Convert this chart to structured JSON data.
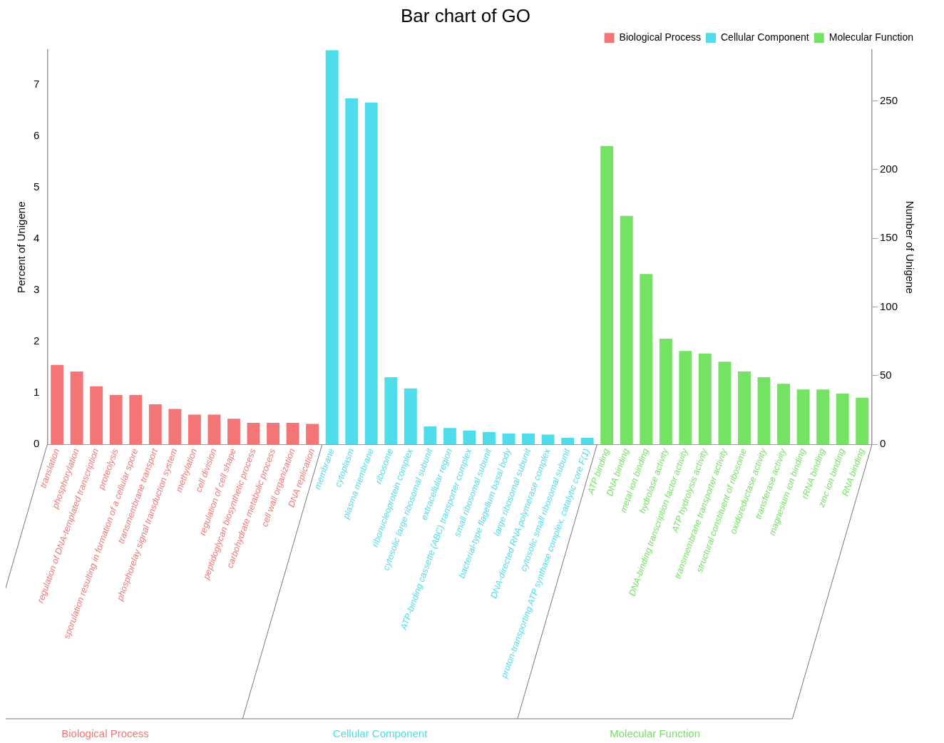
{
  "chart_data": {
    "type": "bar",
    "title": "Bar chart of GO",
    "ylabel": "Percent of Unigene",
    "y2label": "Number of Unigene",
    "categories": [
      "translation",
      "phosphorylation",
      "regulation of DNA-templated transcription",
      "proteolysis",
      "sporulation resulting in formation of a cellular spore",
      "transmembrane transport",
      "phosphorelay signal transduction system",
      "methylation",
      "cell division",
      "regulation of cell shape",
      "peptidoglycan biosynthetic process",
      "carbohydrate metabolic process",
      "cell wall organization",
      "DNA replication",
      "membrane",
      "cytoplasm",
      "plasma membrane",
      "ribosome",
      "ribonucleoprotein complex",
      "cytosolic large ribosomal subunit",
      "extracellular region",
      "ATP-binding cassette (ABC) transporter complex",
      "small ribosomal subunit",
      "bacterial-type flagellum basal body",
      "large ribosomal subunit",
      "DNA-directed RNA polymerase complex",
      "cytosolic small ribosomal subunit",
      "proton-transporting ATP synthase complex, catalytic core F(1)",
      "ATP binding",
      "DNA binding",
      "metal ion binding",
      "hydrolase activity",
      "DNA-binding transcription factor activity",
      "ATP hydrolysis activity",
      "transmembrane transporter activity",
      "structural constituent of ribosome",
      "oxidoreductase activity",
      "transferase activity",
      "magnesium ion binding",
      "rRNA binding",
      "zinc ion binding",
      "RNA binding"
    ],
    "series": [
      {
        "name": "Biological Process",
        "color": "#f47575",
        "values": [
          1.55,
          1.42,
          1.13,
          0.96,
          0.96,
          0.78,
          0.69,
          0.58,
          0.58,
          0.5,
          0.42,
          0.42,
          0.42,
          0.4,
          null,
          null,
          null,
          null,
          null,
          null,
          null,
          null,
          null,
          null,
          null,
          null,
          null,
          null,
          null,
          null,
          null,
          null,
          null,
          null,
          null,
          null,
          null,
          null,
          null,
          null,
          null,
          null
        ]
      },
      {
        "name": "Cellular Component",
        "color": "#4fdceb",
        "values": [
          null,
          null,
          null,
          null,
          null,
          null,
          null,
          null,
          null,
          null,
          null,
          null,
          null,
          null,
          7.68,
          6.74,
          6.66,
          1.31,
          1.09,
          0.35,
          0.32,
          0.27,
          0.24,
          0.21,
          0.21,
          0.19,
          0.13,
          0.13,
          null,
          null,
          null,
          null,
          null,
          null,
          null,
          null,
          null,
          null,
          null,
          null,
          null,
          null
        ]
      },
      {
        "name": "Molecular Function",
        "color": "#74e262",
        "values": [
          null,
          null,
          null,
          null,
          null,
          null,
          null,
          null,
          null,
          null,
          null,
          null,
          null,
          null,
          null,
          null,
          null,
          null,
          null,
          null,
          null,
          null,
          null,
          null,
          null,
          null,
          null,
          null,
          5.81,
          4.45,
          3.32,
          2.06,
          1.82,
          1.77,
          1.61,
          1.42,
          1.31,
          1.18,
          1.07,
          1.07,
          0.99,
          0.91
        ]
      }
    ],
    "ylim": [
      0,
      7.68
    ],
    "yticks": [
      0,
      1,
      2,
      3,
      4,
      5,
      6,
      7
    ],
    "y2lim": [
      0,
      287
    ],
    "y2ticks": [
      0,
      50,
      100,
      150,
      200,
      250
    ],
    "grid": false,
    "legend": "top right"
  }
}
